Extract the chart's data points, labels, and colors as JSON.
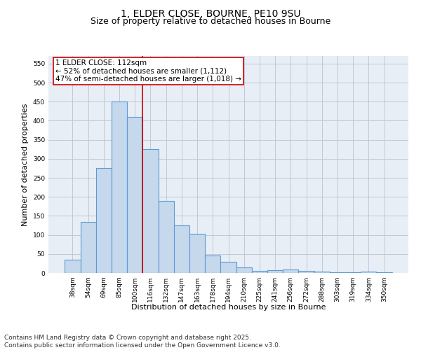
{
  "title_line1": "1, ELDER CLOSE, BOURNE, PE10 9SU",
  "title_line2": "Size of property relative to detached houses in Bourne",
  "categories": [
    "38sqm",
    "54sqm",
    "69sqm",
    "85sqm",
    "100sqm",
    "116sqm",
    "132sqm",
    "147sqm",
    "163sqm",
    "178sqm",
    "194sqm",
    "210sqm",
    "225sqm",
    "241sqm",
    "256sqm",
    "272sqm",
    "288sqm",
    "303sqm",
    "319sqm",
    "334sqm",
    "350sqm"
  ],
  "values": [
    35,
    135,
    275,
    450,
    410,
    325,
    190,
    125,
    103,
    46,
    30,
    15,
    5,
    8,
    10,
    5,
    3,
    2,
    1,
    3,
    2
  ],
  "bar_color": "#c5d8ec",
  "bar_edge_color": "#5b9bd5",
  "bar_linewidth": 0.8,
  "vline_x": 4.5,
  "vline_color": "#cc0000",
  "vline_label_title": "1 ELDER CLOSE: 112sqm",
  "vline_label_line2": "← 52% of detached houses are smaller (1,112)",
  "vline_label_line3": "47% of semi-detached houses are larger (1,018) →",
  "annotation_box_color": "#cc0000",
  "xlabel": "Distribution of detached houses by size in Bourne",
  "ylabel": "Number of detached properties",
  "ylim": [
    0,
    570
  ],
  "yticks": [
    0,
    50,
    100,
    150,
    200,
    250,
    300,
    350,
    400,
    450,
    500,
    550
  ],
  "grid_color": "#c0c8d8",
  "background_color": "#e8eef5",
  "footnote_line1": "Contains HM Land Registry data © Crown copyright and database right 2025.",
  "footnote_line2": "Contains public sector information licensed under the Open Government Licence v3.0.",
  "title_fontsize": 10,
  "subtitle_fontsize": 9,
  "axis_label_fontsize": 8,
  "tick_fontsize": 6.5,
  "annotation_fontsize": 7.5,
  "footnote_fontsize": 6.5
}
